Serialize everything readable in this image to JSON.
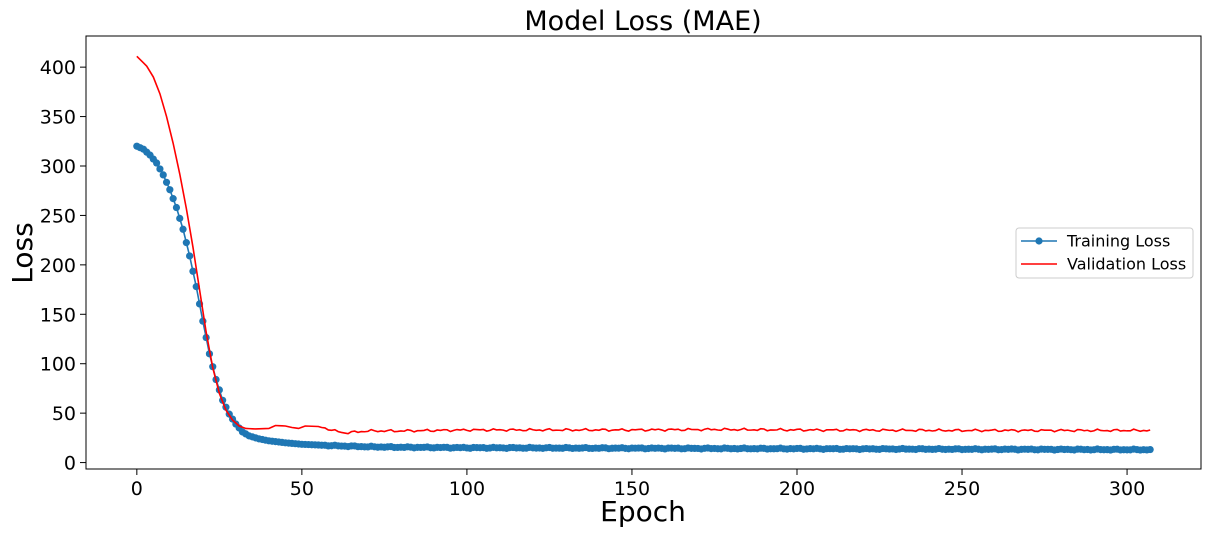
{
  "chart_data": {
    "type": "line",
    "title": "Model Loss (MAE)",
    "xlabel": "Epoch",
    "ylabel": "Loss",
    "xlim": [
      -15.4,
      322.4
    ],
    "ylim": [
      -6.5,
      431.5
    ],
    "xticks": [
      0,
      50,
      100,
      150,
      200,
      250,
      300
    ],
    "yticks": [
      0,
      50,
      100,
      150,
      200,
      250,
      300,
      350,
      400
    ],
    "grid": false,
    "legend_position": "center-right",
    "series": [
      {
        "name": "Training Loss",
        "color": "#1f77b4",
        "marker": "circle",
        "x_start": 0,
        "x_end": 307,
        "keypoints": [
          [
            0,
            320
          ],
          [
            2,
            317
          ],
          [
            4,
            311
          ],
          [
            6,
            303
          ],
          [
            8,
            291
          ],
          [
            10,
            276
          ],
          [
            12,
            258
          ],
          [
            14,
            236
          ],
          [
            16,
            209
          ],
          [
            18,
            178
          ],
          [
            20,
            143
          ],
          [
            22,
            110
          ],
          [
            24,
            84
          ],
          [
            26,
            63
          ],
          [
            28,
            49
          ],
          [
            30,
            39
          ],
          [
            32,
            31
          ],
          [
            34,
            27
          ],
          [
            37,
            24
          ],
          [
            40,
            22
          ],
          [
            45,
            20
          ],
          [
            50,
            18.5
          ],
          [
            60,
            17
          ],
          [
            70,
            16
          ],
          [
            80,
            15.5
          ],
          [
            100,
            15
          ],
          [
            150,
            14.5
          ],
          [
            200,
            14
          ],
          [
            250,
            13.5
          ],
          [
            307,
            13
          ]
        ]
      },
      {
        "name": "Validation Loss",
        "color": "#ff0000",
        "marker": "none",
        "x_start": 0,
        "x_end": 307,
        "keypoints": [
          [
            0,
            411
          ],
          [
            3,
            401
          ],
          [
            5,
            390
          ],
          [
            7,
            373
          ],
          [
            9,
            350
          ],
          [
            11,
            323
          ],
          [
            13,
            292
          ],
          [
            15,
            257
          ],
          [
            17,
            218
          ],
          [
            19,
            175
          ],
          [
            21,
            132
          ],
          [
            23,
            96
          ],
          [
            25,
            70
          ],
          [
            27,
            53
          ],
          [
            29,
            43
          ],
          [
            31,
            37
          ],
          [
            33,
            34.5
          ],
          [
            36,
            34
          ],
          [
            40,
            34.5
          ],
          [
            42,
            37.5
          ],
          [
            45,
            37
          ],
          [
            47,
            35.5
          ],
          [
            49,
            34.5
          ],
          [
            51,
            37
          ],
          [
            55,
            36.5
          ],
          [
            58,
            34
          ],
          [
            60,
            32
          ],
          [
            63,
            30
          ],
          [
            70,
            32
          ],
          [
            80,
            32
          ],
          [
            100,
            33
          ],
          [
            150,
            33
          ],
          [
            175,
            33.5
          ],
          [
            200,
            33
          ],
          [
            250,
            32.5
          ],
          [
            307,
            32.5
          ]
        ]
      }
    ]
  }
}
